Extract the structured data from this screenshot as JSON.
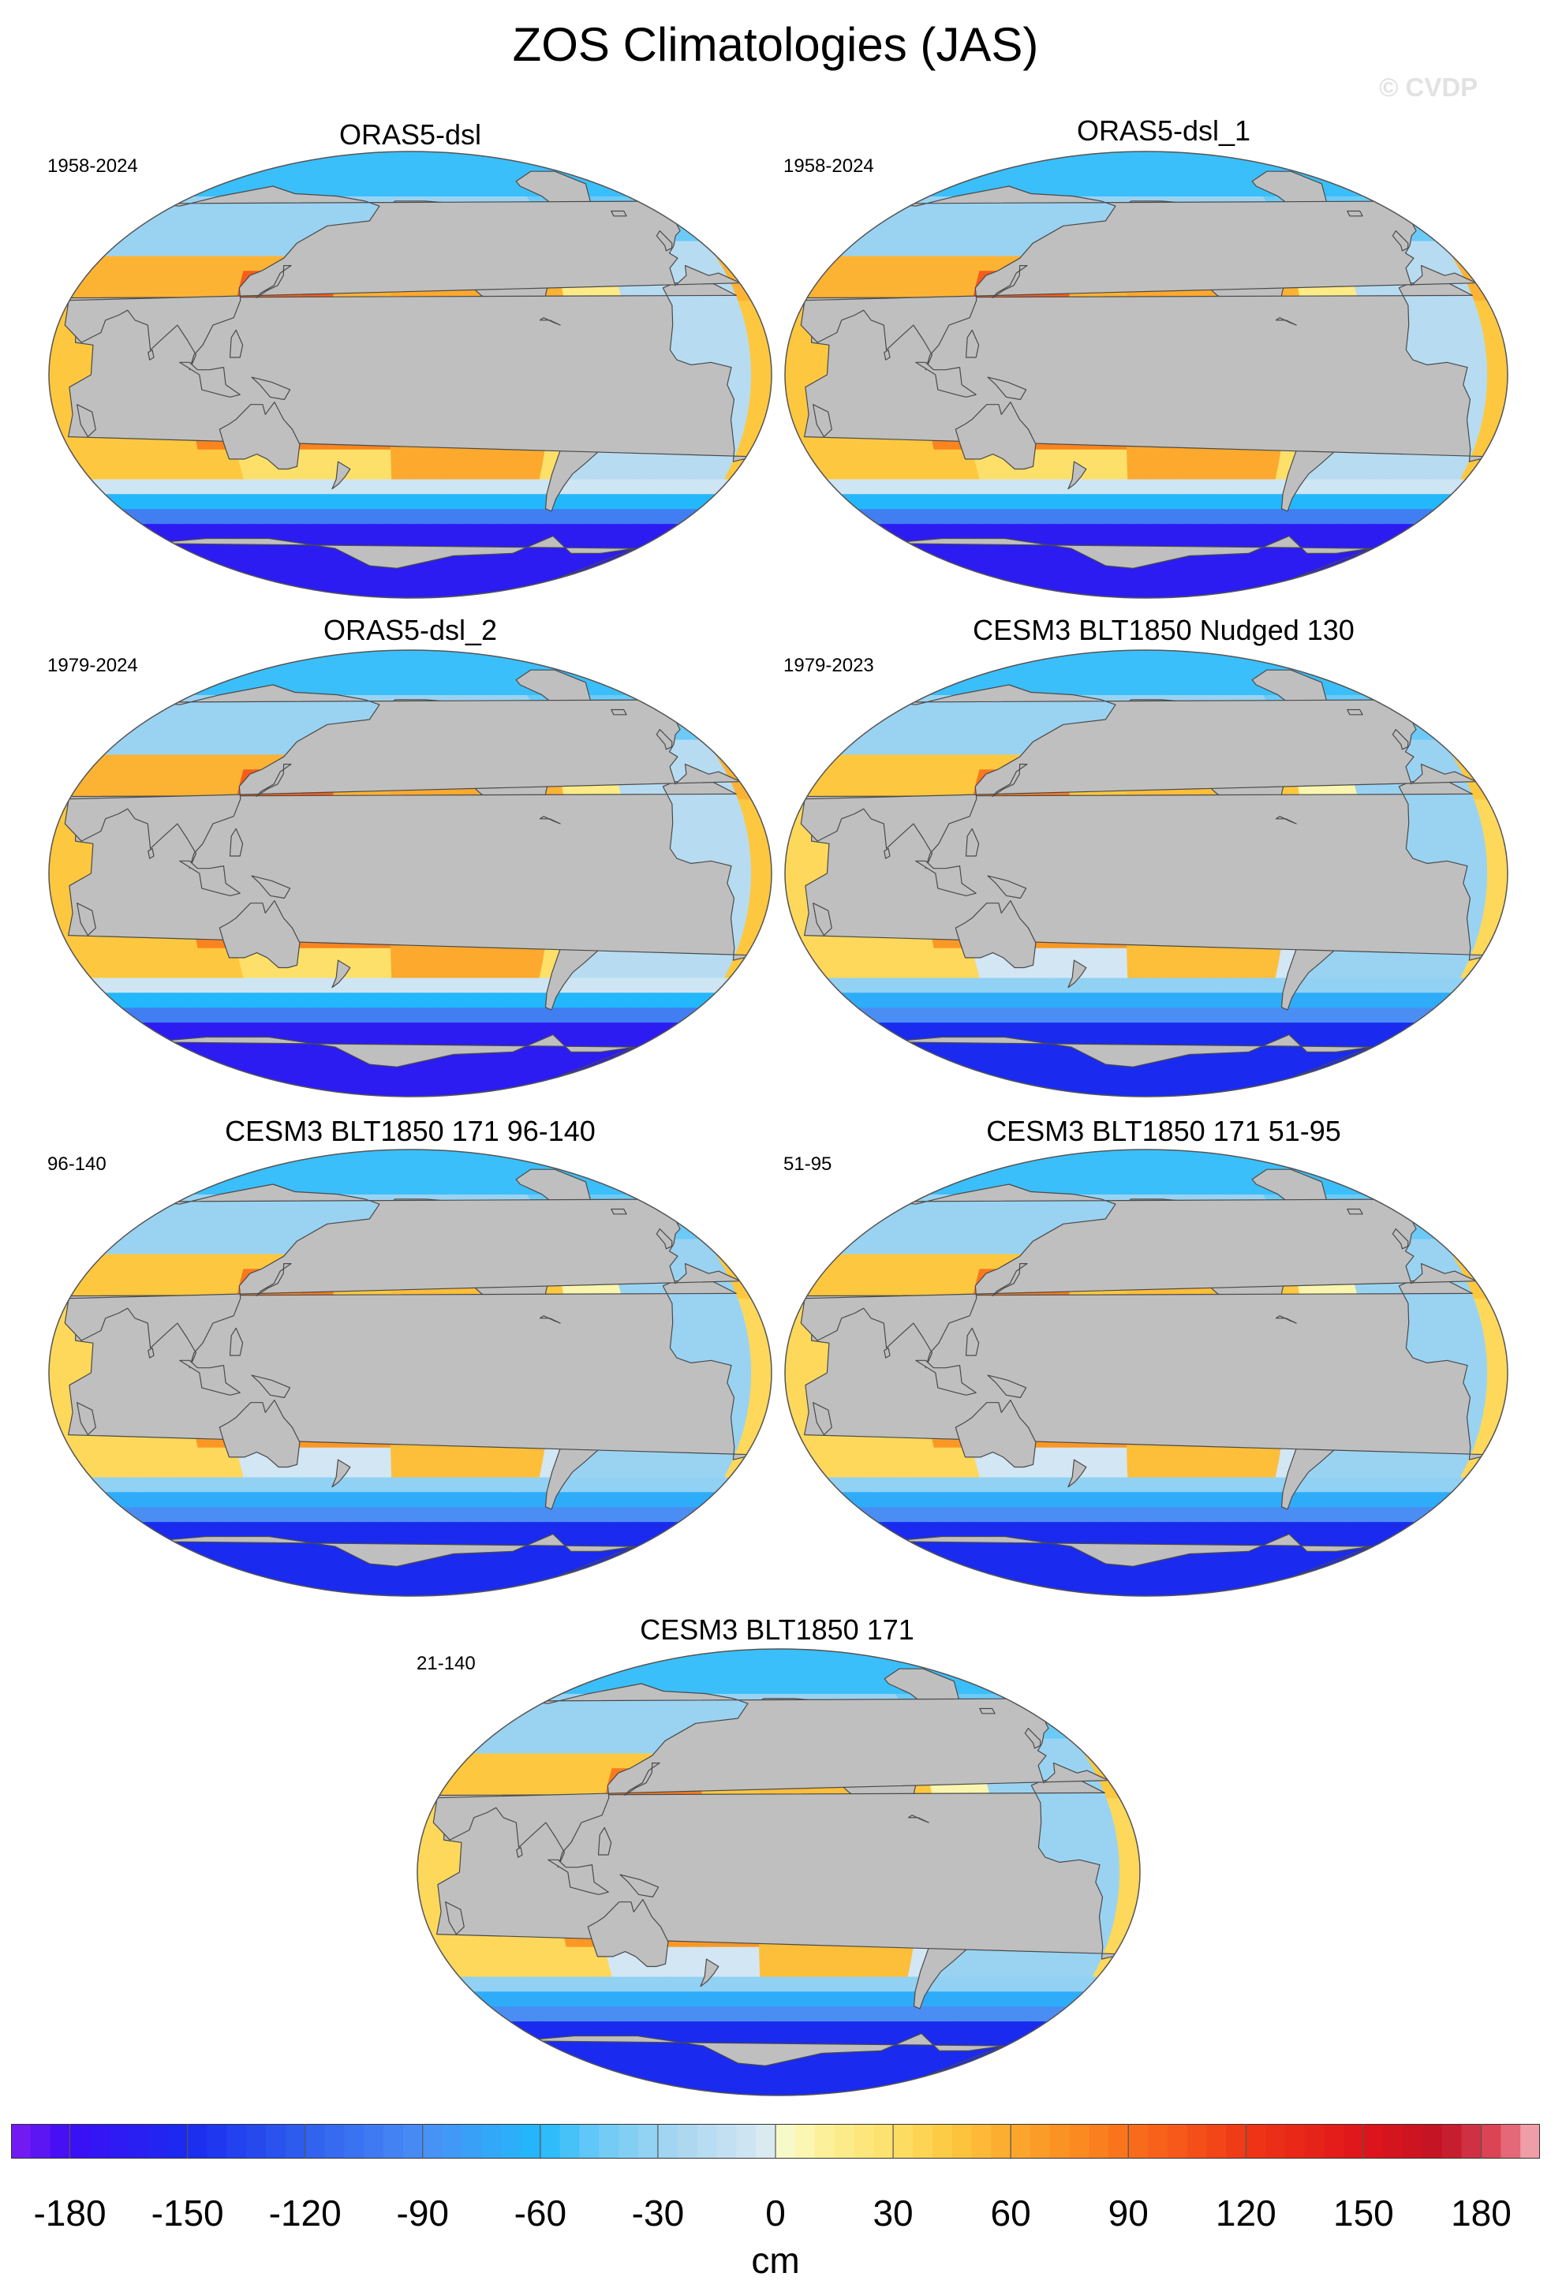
{
  "figure": {
    "title": "ZOS Climatologies (JAS)",
    "watermark": "© CVDP"
  },
  "panels": [
    {
      "title": "ORAS5-dsl",
      "period": "1958-2024",
      "variant": "obs"
    },
    {
      "title": "ORAS5-dsl_1",
      "period": "1958-2024",
      "variant": "obs"
    },
    {
      "title": "ORAS5-dsl_2",
      "period": "1979-2024",
      "variant": "obs"
    },
    {
      "title": "CESM3 BLT1850 Nudged 130",
      "period": "1979-2023",
      "variant": "model"
    },
    {
      "title": "CESM3 BLT1850 171 96-140",
      "period": "96-140",
      "variant": "model"
    },
    {
      "title": "CESM3 BLT1850 171 51-95",
      "period": "51-95",
      "variant": "model"
    },
    {
      "title": "CESM3 BLT1850 171",
      "period": "21-140",
      "variant": "model"
    }
  ],
  "colorbar": {
    "units": "cm",
    "range": [
      -195,
      195
    ],
    "step": 5,
    "tick_values": [
      -180,
      -150,
      -120,
      -90,
      -60,
      -30,
      0,
      30,
      60,
      90,
      120,
      150,
      180
    ],
    "tick_labels": [
      "-180",
      "-150",
      "-120",
      "-90",
      "-60",
      "-30",
      "0",
      "30",
      "60",
      "90",
      "120",
      "150",
      "180"
    ]
  },
  "colors": {
    "land": "#bfbfbf",
    "coast": "#4a4a4a",
    "background": "#ffffff"
  }
}
